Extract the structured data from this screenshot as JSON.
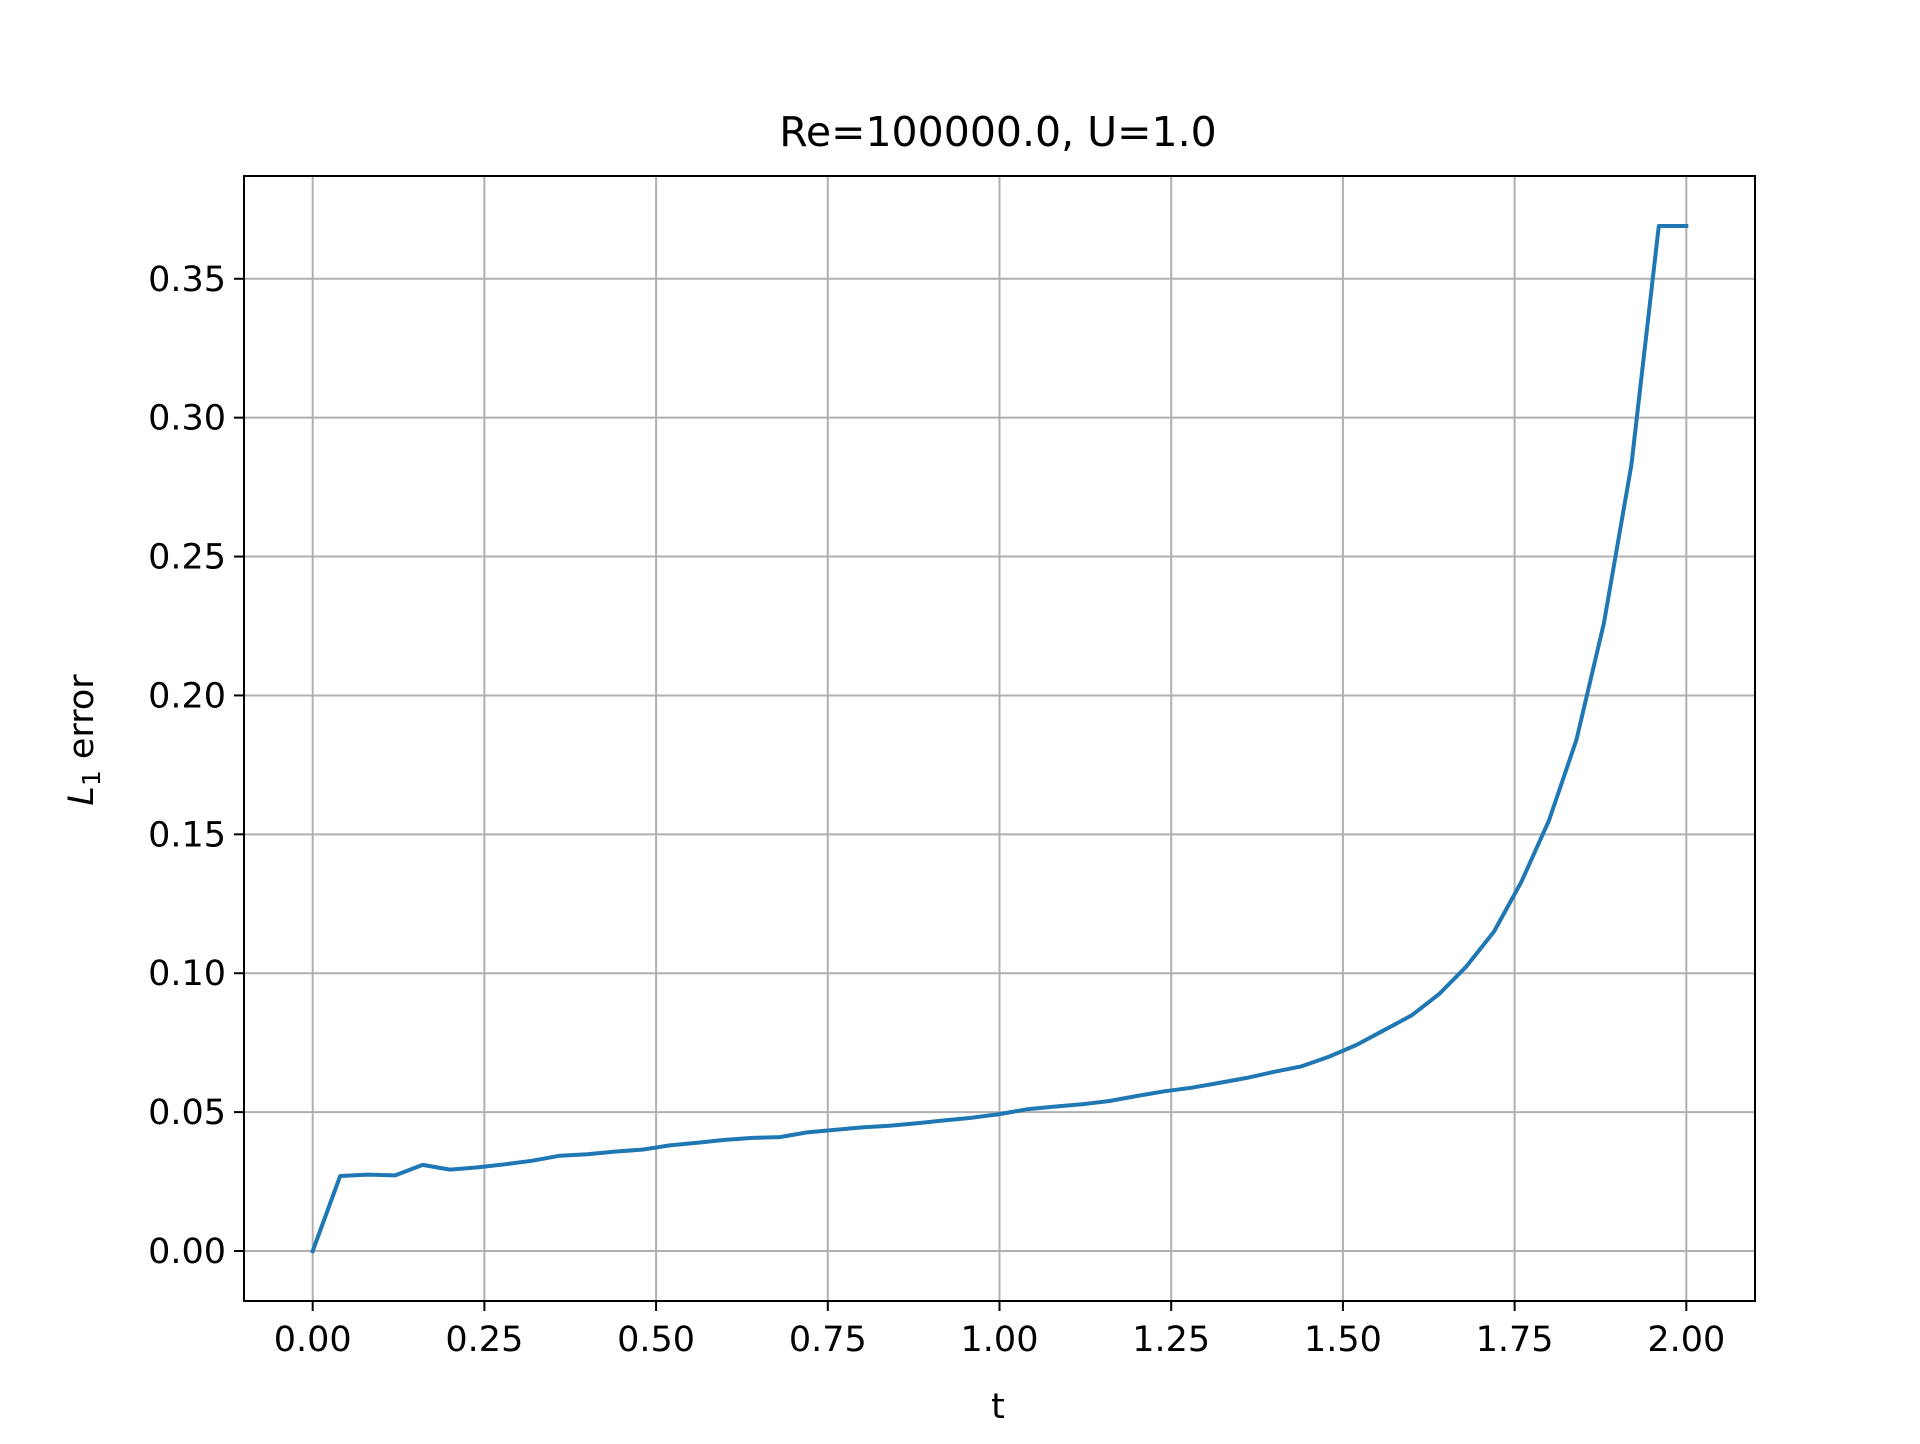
{
  "chart_data": {
    "type": "line",
    "title": "Re=100000.0, U=1.0",
    "xlabel": "t",
    "ylabel_main": "L",
    "ylabel_sub": "1",
    "ylabel_rest": " error",
    "xlim": [
      -0.1,
      2.1
    ],
    "ylim": [
      -0.018,
      0.387
    ],
    "xticks": [
      0.0,
      0.25,
      0.5,
      0.75,
      1.0,
      1.25,
      1.5,
      1.75,
      2.0
    ],
    "xtick_labels": [
      "0.00",
      "0.25",
      "0.50",
      "0.75",
      "1.00",
      "1.25",
      "1.50",
      "1.75",
      "2.00"
    ],
    "yticks": [
      0.0,
      0.05,
      0.1,
      0.15,
      0.2,
      0.25,
      0.3,
      0.35
    ],
    "ytick_labels": [
      "0.00",
      "0.05",
      "0.10",
      "0.15",
      "0.20",
      "0.25",
      "0.30",
      "0.35"
    ],
    "grid": true,
    "series": [
      {
        "color": "#1f77b4",
        "x": [
          0.0,
          0.04,
          0.08,
          0.12,
          0.16,
          0.2,
          0.24,
          0.28,
          0.32,
          0.36,
          0.4,
          0.44,
          0.48,
          0.52,
          0.56,
          0.6,
          0.64,
          0.68,
          0.72,
          0.76,
          0.8,
          0.84,
          0.88,
          0.92,
          0.96,
          1.0,
          1.04,
          1.08,
          1.12,
          1.16,
          1.2,
          1.24,
          1.28,
          1.32,
          1.36,
          1.4,
          1.44,
          1.48,
          1.52,
          1.56,
          1.6,
          1.64,
          1.68,
          1.72,
          1.76,
          1.8,
          1.84,
          1.88,
          1.92,
          1.96,
          2.0
        ],
        "y": [
          0.0,
          0.027,
          0.0275,
          0.0272,
          0.031,
          0.0293,
          0.0301,
          0.0312,
          0.0325,
          0.0343,
          0.0348,
          0.0358,
          0.0365,
          0.038,
          0.039,
          0.04,
          0.0407,
          0.041,
          0.0427,
          0.0436,
          0.0445,
          0.0451,
          0.046,
          0.047,
          0.048,
          0.0493,
          0.051,
          0.052,
          0.0528,
          0.054,
          0.0558,
          0.0575,
          0.0588,
          0.0605,
          0.0623,
          0.0645,
          0.0665,
          0.07,
          0.0742,
          0.0795,
          0.0848,
          0.0925,
          0.1025,
          0.115,
          0.133,
          0.155,
          0.184,
          0.226,
          0.283,
          0.369,
          0.369
        ]
      }
    ]
  }
}
